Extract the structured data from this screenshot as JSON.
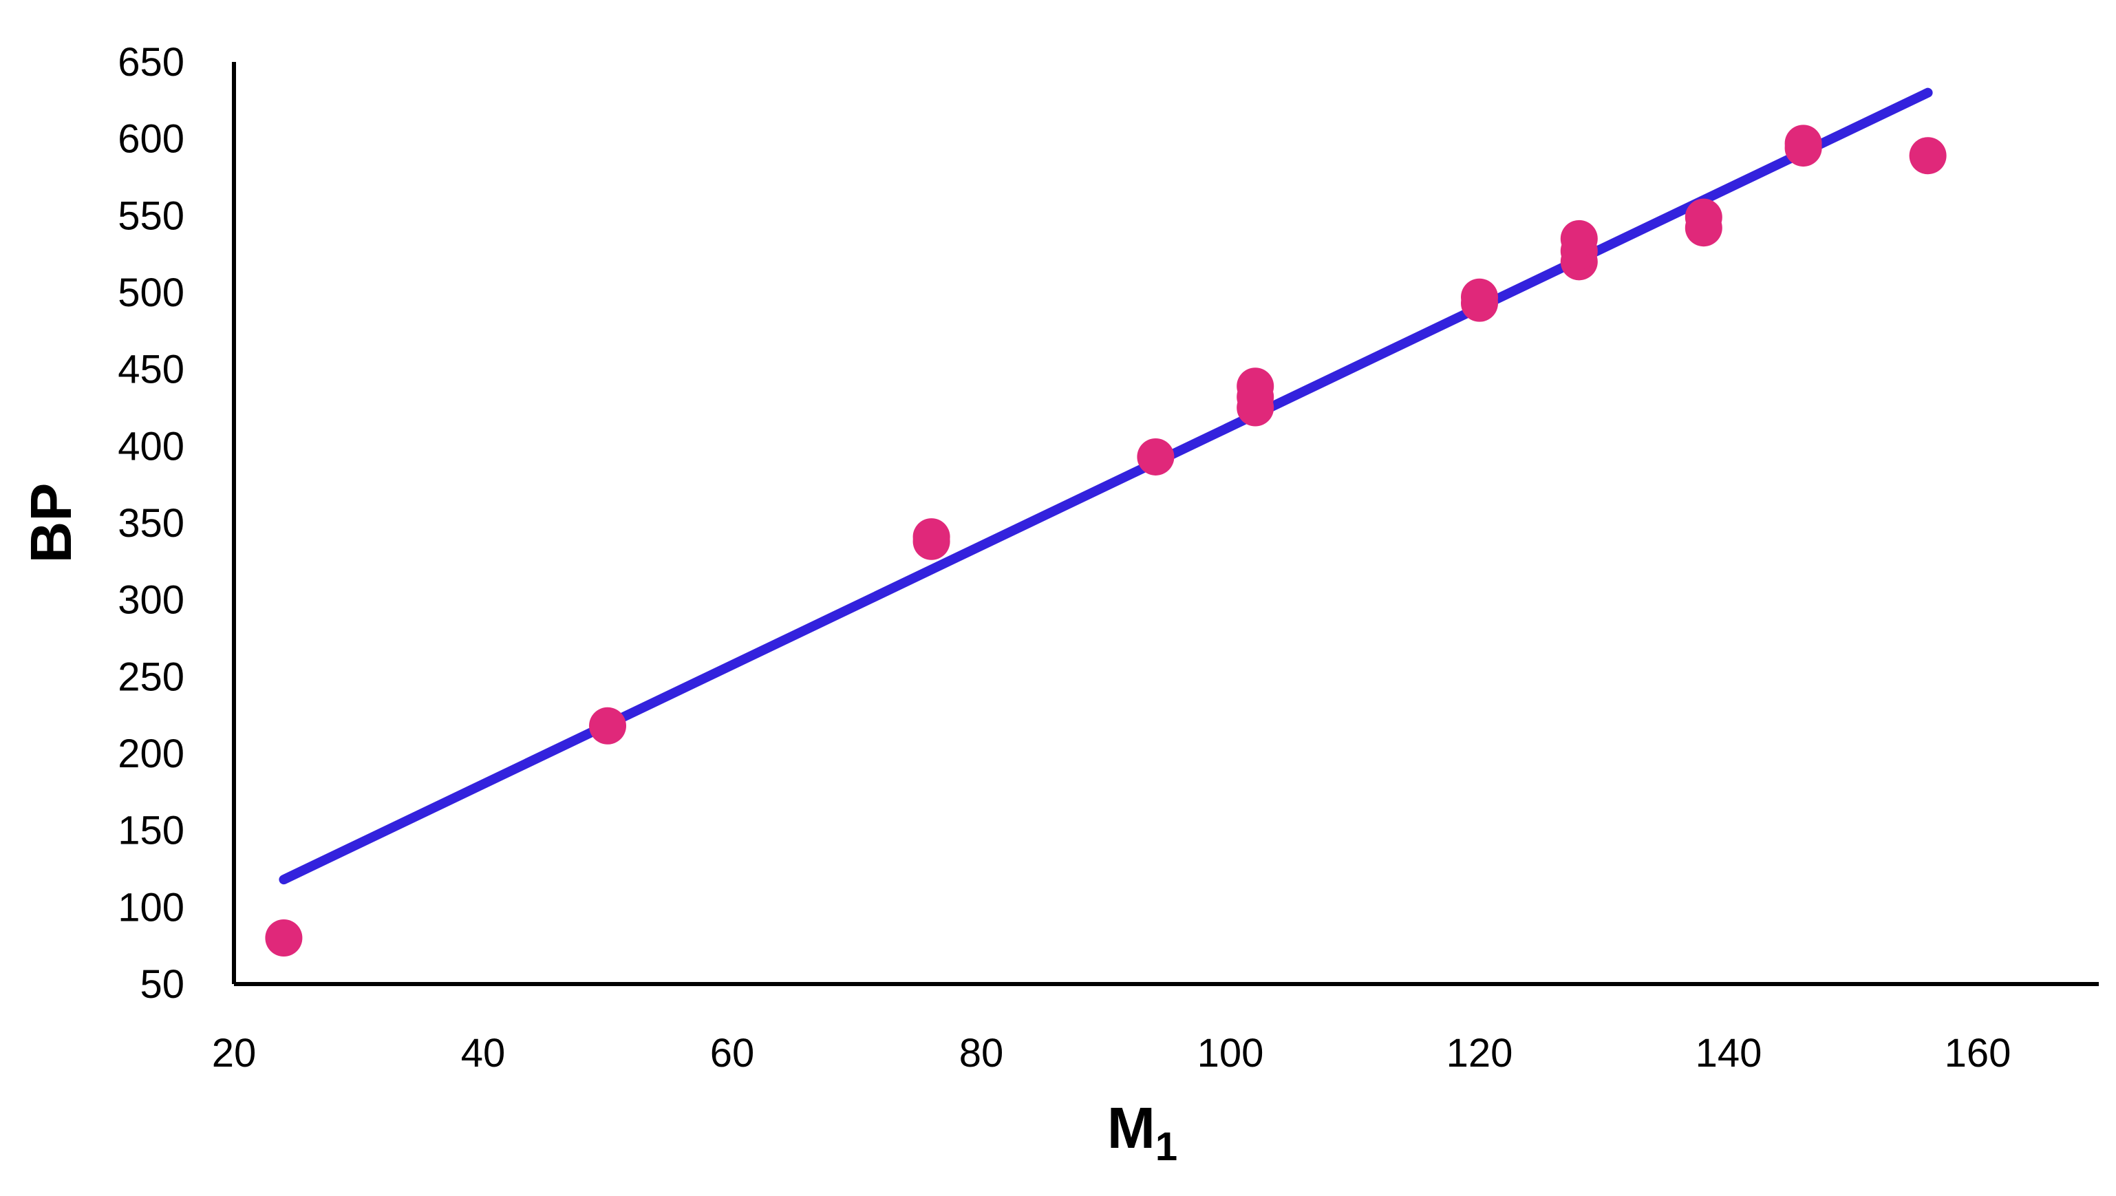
{
  "chart_data": {
    "type": "scatter",
    "title": "",
    "xlabel": "M",
    "xlabel_subscript": "1",
    "ylabel": "BP",
    "xlim": [
      20,
      170
    ],
    "ylim": [
      50,
      650
    ],
    "x_ticks": [
      20,
      40,
      60,
      80,
      100,
      120,
      140,
      160
    ],
    "y_ticks": [
      50,
      100,
      150,
      200,
      250,
      300,
      350,
      400,
      450,
      500,
      550,
      600,
      650
    ],
    "grid": false,
    "legend": "none",
    "series": [
      {
        "kind": "points",
        "color": "#e0287a",
        "points": [
          {
            "x": 24,
            "y": 80
          },
          {
            "x": 50,
            "y": 218
          },
          {
            "x": 76,
            "y": 338
          },
          {
            "x": 76,
            "y": 341
          },
          {
            "x": 94,
            "y": 393
          },
          {
            "x": 102,
            "y": 425
          },
          {
            "x": 102,
            "y": 432
          },
          {
            "x": 102,
            "y": 439
          },
          {
            "x": 120,
            "y": 493
          },
          {
            "x": 120,
            "y": 497
          },
          {
            "x": 128,
            "y": 520
          },
          {
            "x": 128,
            "y": 527
          },
          {
            "x": 128,
            "y": 535
          },
          {
            "x": 138,
            "y": 542
          },
          {
            "x": 138,
            "y": 549
          },
          {
            "x": 146,
            "y": 594
          },
          {
            "x": 146,
            "y": 597
          },
          {
            "x": 156,
            "y": 589
          }
        ]
      },
      {
        "kind": "trendline",
        "color": "#3322dd",
        "x": [
          24,
          156
        ],
        "y": [
          118,
          630
        ]
      }
    ]
  }
}
